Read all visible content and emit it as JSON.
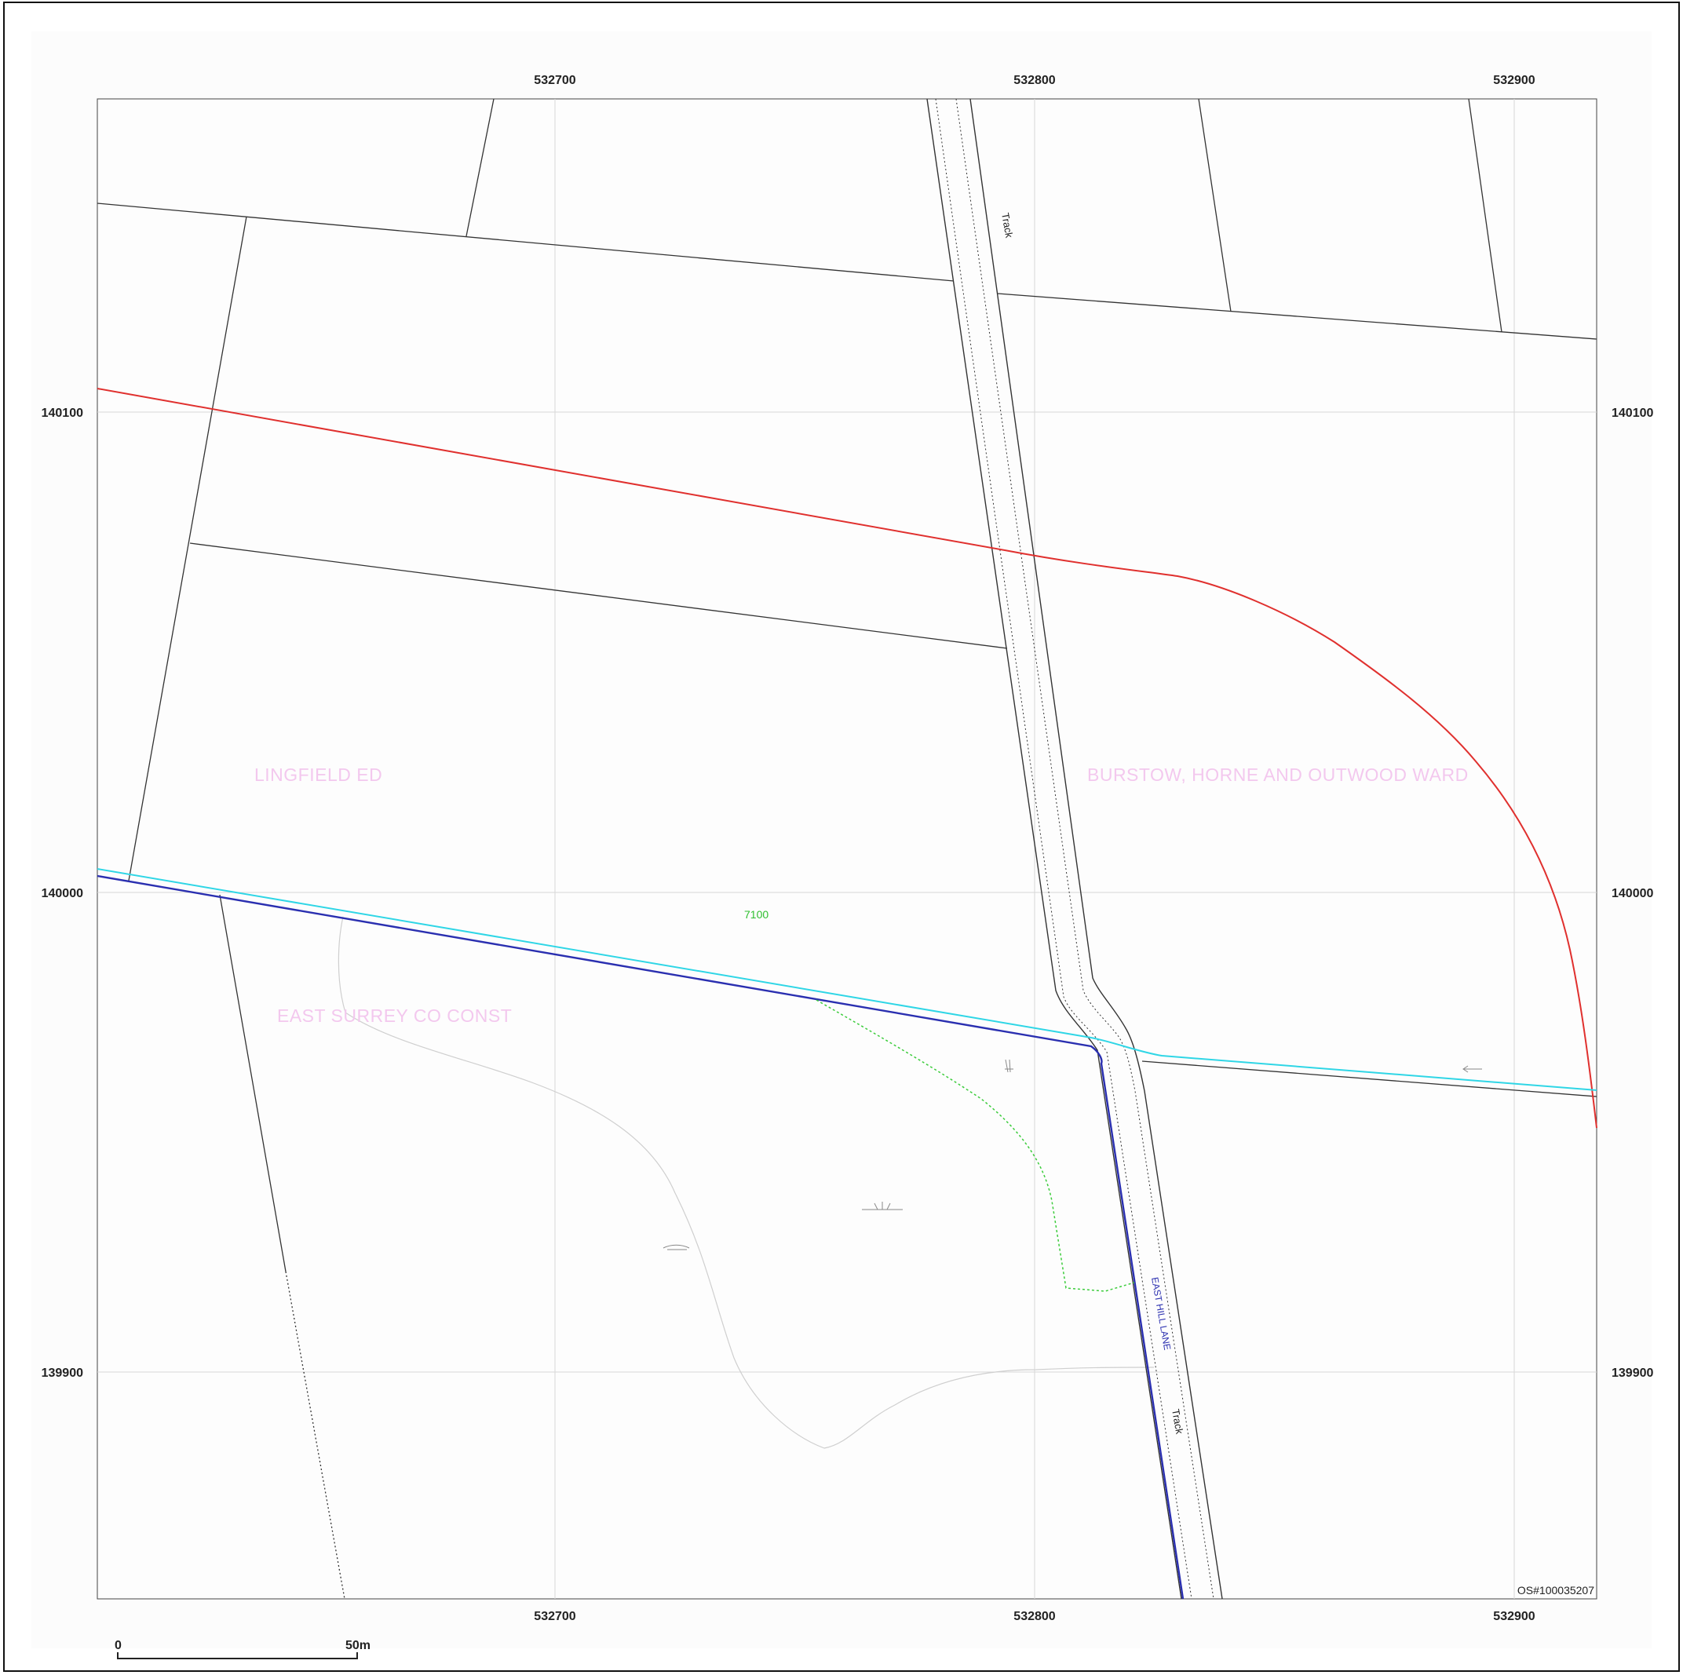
{
  "map": {
    "copyright": "OS#100035207",
    "scale_bar": {
      "start_label": "0",
      "end_label": "50m"
    },
    "x_ticks": [
      "532700",
      "532800",
      "532900"
    ],
    "y_ticks": [
      "140100",
      "140000",
      "139900"
    ],
    "area_labels": {
      "lingfield": "LINGFIELD ED",
      "burstow": "BURSTOW, HORNE AND OUTWOOD WARD",
      "east_surrey": "EAST SURREY CO CONST"
    },
    "feature_labels": {
      "track_north": "Track",
      "track_south": "Track",
      "lane": "EAST HILL LANE",
      "contour": "7100"
    },
    "colors": {
      "grid": "#d8d8d8",
      "parcel": "#333333",
      "boundary_red": "#e0302e",
      "boundary_cyan": "#2fd6e6",
      "boundary_blue": "#2a2fb0",
      "area_label": "#f3c8ee",
      "green_dotted": "#3ccc3c",
      "faint_path": "#c8c8c8"
    }
  }
}
